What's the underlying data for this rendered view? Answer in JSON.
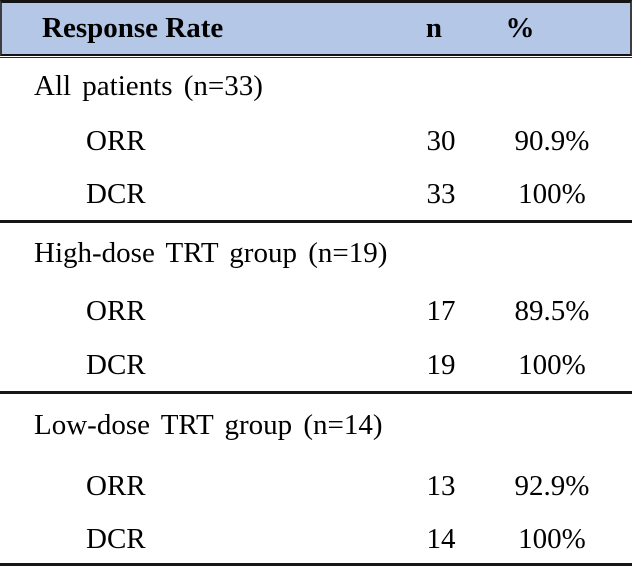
{
  "table": {
    "header": {
      "label": "Response Rate",
      "n": "n",
      "percent": "%"
    },
    "sections": [
      {
        "title": "All patients (n=33)",
        "rows": [
          {
            "label": "ORR",
            "n": "30",
            "percent": "90.9%"
          },
          {
            "label": "DCR",
            "n": "33",
            "percent": "100%"
          }
        ]
      },
      {
        "title": "High-dose TRT group (n=19)",
        "rows": [
          {
            "label": "ORR",
            "n": "17",
            "percent": "89.5%"
          },
          {
            "label": "DCR",
            "n": "19",
            "percent": "100%"
          }
        ]
      },
      {
        "title": "Low-dose TRT group (n=14)",
        "rows": [
          {
            "label": "ORR",
            "n": "13",
            "percent": "92.9%"
          },
          {
            "label": "DCR",
            "n": "14",
            "percent": "100%"
          }
        ]
      }
    ]
  },
  "colors": {
    "header_bg": "#b4c7e7",
    "rule": "#161616",
    "text": "#000000"
  }
}
